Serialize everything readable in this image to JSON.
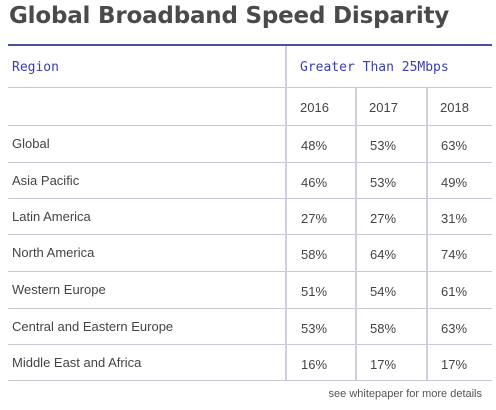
{
  "title": "Global Broadband Speed Disparity",
  "table": {
    "region_header": "Region",
    "group_header": "Greater Than 25Mbps",
    "years": [
      "2016",
      "2017",
      "2018"
    ],
    "rows": [
      {
        "region": "Global",
        "values": [
          "48%",
          "53%",
          "63%"
        ]
      },
      {
        "region": "Asia Pacific",
        "values": [
          "46%",
          "53%",
          "49%"
        ]
      },
      {
        "region": "Latin America",
        "values": [
          "27%",
          "27%",
          "31%"
        ]
      },
      {
        "region": "North America",
        "values": [
          "58%",
          "64%",
          "74%"
        ]
      },
      {
        "region": "Western Europe",
        "values": [
          "51%",
          "54%",
          "61%"
        ]
      },
      {
        "region": "Central and Eastern Europe",
        "values": [
          "53%",
          "58%",
          "63%"
        ]
      },
      {
        "region": "Middle East and Africa",
        "values": [
          "16%",
          "17%",
          "17%"
        ]
      }
    ]
  },
  "colors": {
    "header_text": "#3a3fb0",
    "top_border": "#4a50a0",
    "grid_line": "#c8c8d6",
    "body_text": "#444444"
  },
  "footer_note": "see whitepaper for more details"
}
